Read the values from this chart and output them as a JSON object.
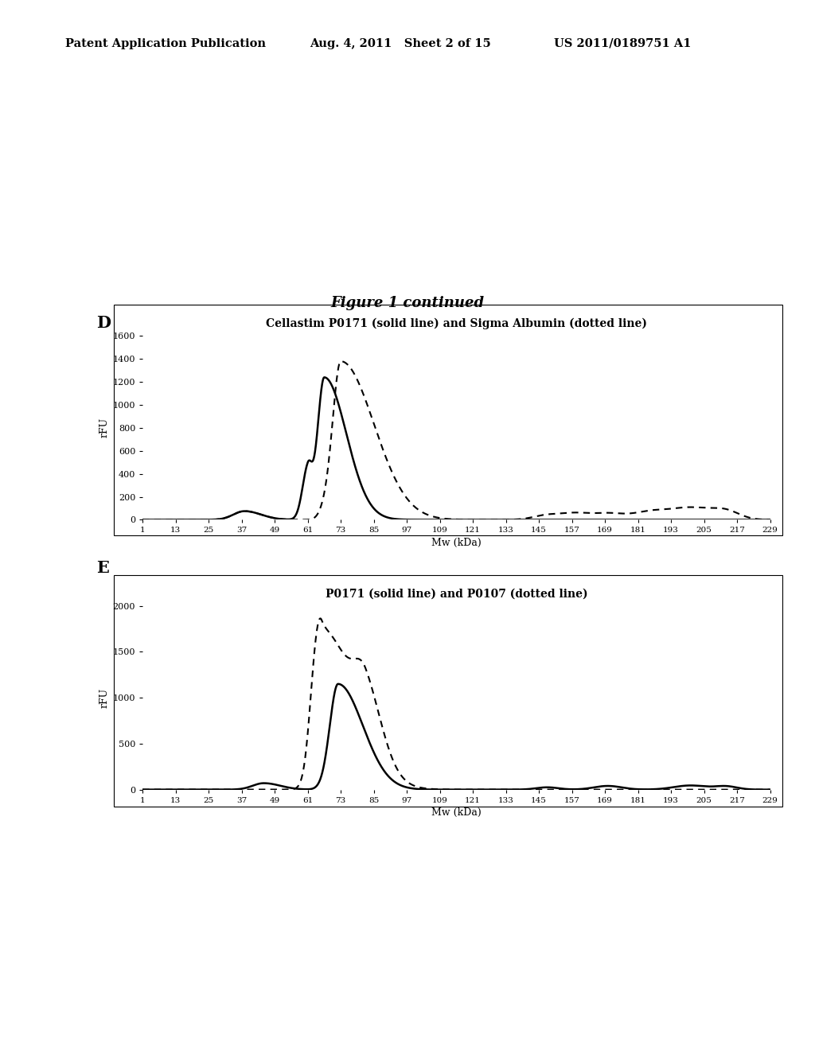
{
  "header_left": "Patent Application Publication",
  "header_mid": "Aug. 4, 2011   Sheet 2 of 15",
  "header_right": "US 2011/0189751 A1",
  "figure_title": "Figure 1 continued",
  "panel_D_label": "D",
  "panel_E_label": "E",
  "panel_D_title": "Cellastim P0171 (solid line) and Sigma Albumin (dotted line)",
  "panel_E_title": "P0171 (solid line) and P0107 (dotted line)",
  "ylabel": "rFU",
  "xlabel": "Mw (kDa)",
  "x_ticks": [
    1,
    13,
    25,
    37,
    49,
    61,
    73,
    85,
    97,
    109,
    121,
    133,
    145,
    157,
    169,
    181,
    193,
    205,
    217,
    229
  ],
  "panel_D_ylim": [
    0,
    1600
  ],
  "panel_D_yticks": [
    0,
    200,
    400,
    600,
    800,
    1000,
    1200,
    1400,
    1600
  ],
  "panel_E_ylim": [
    0,
    2000
  ],
  "panel_E_yticks": [
    0,
    500,
    1000,
    1500,
    2000
  ],
  "background_color": "#ffffff",
  "line_color": "#000000"
}
